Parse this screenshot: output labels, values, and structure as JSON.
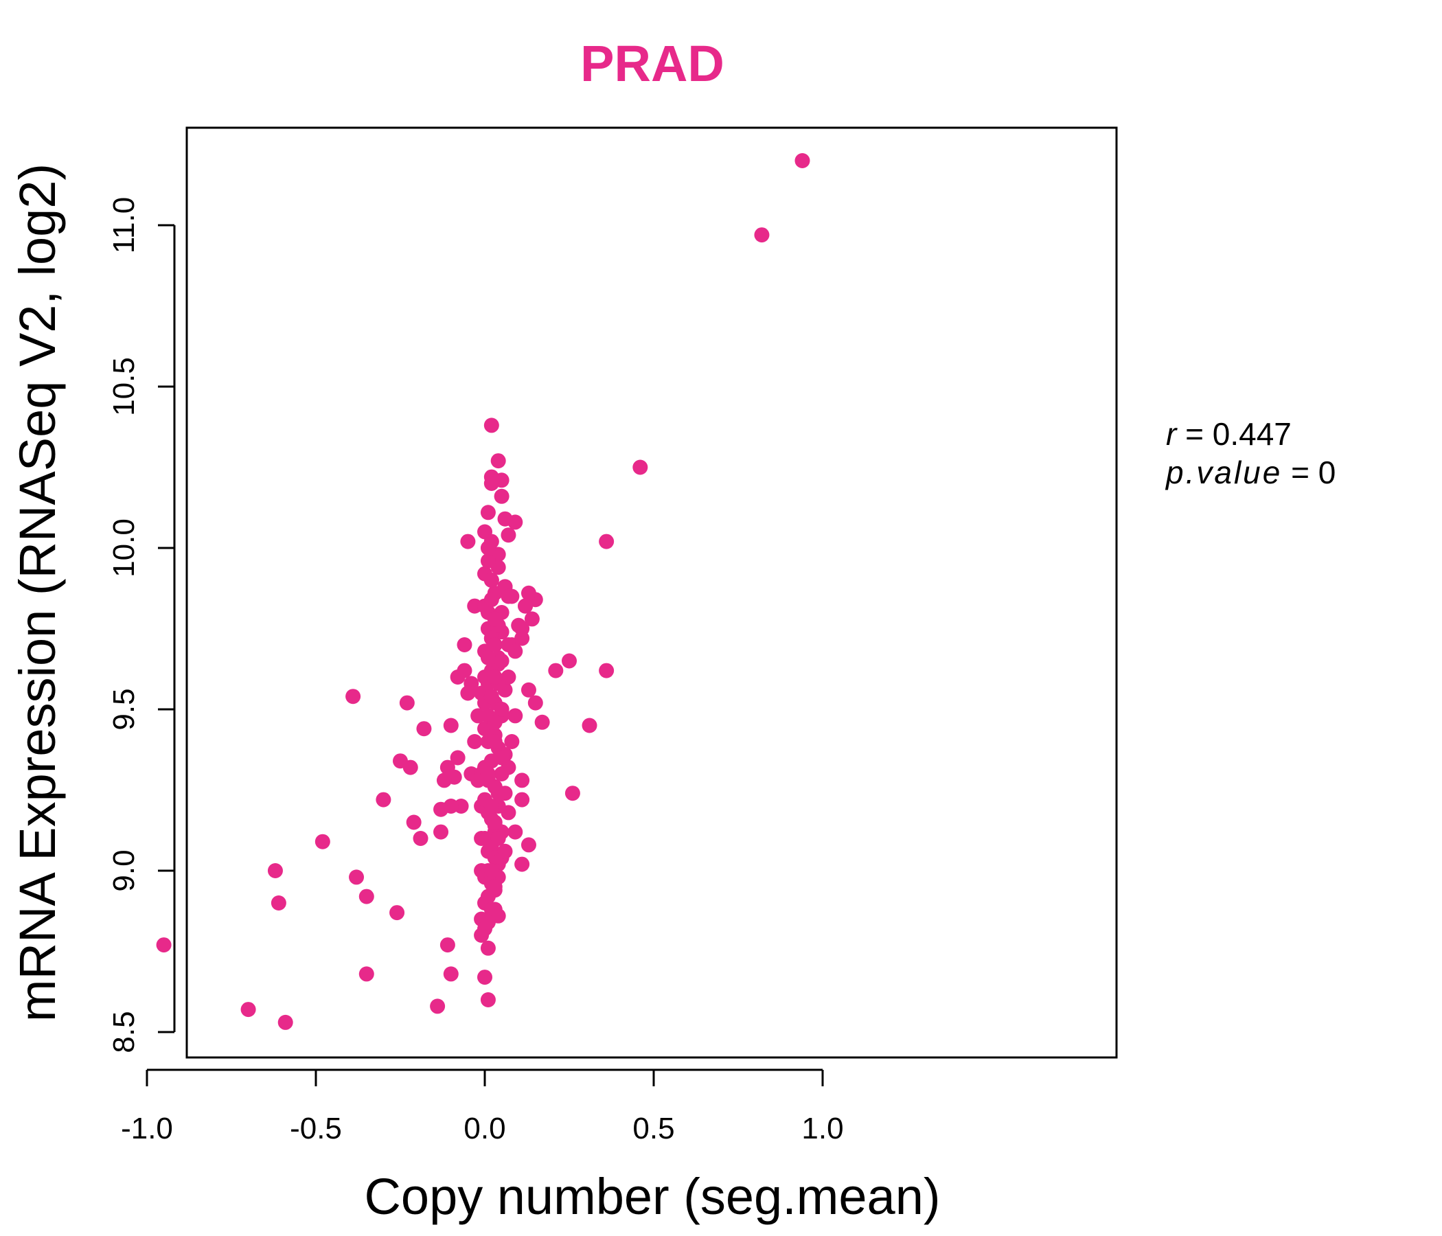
{
  "chart_data": {
    "type": "scatter",
    "title": "PRAD",
    "xlabel": "Copy number (seg.mean)",
    "ylabel": "mRNA Expression (RNASeq V2, log2)",
    "xlim": [
      -1.0,
      1.0
    ],
    "ylim": [
      8.5,
      11.2
    ],
    "xticks": [
      "-1.0",
      "-0.5",
      "0.0",
      "0.5",
      "1.0"
    ],
    "yticks": [
      "8.5",
      "9.0",
      "9.5",
      "10.0",
      "10.5",
      "11.0"
    ],
    "grid": false,
    "point_color": "#e7298a",
    "annotations": {
      "r_label": "r",
      "r_value": "0.447",
      "p_label": "p.value",
      "p_value": "0"
    },
    "series": [
      {
        "x": [
          0.94,
          0.82,
          0.46,
          0.36,
          0.36,
          0.31,
          0.26,
          0.25,
          0.21,
          0.17,
          0.15,
          0.15,
          0.14,
          0.13,
          0.13,
          0.13,
          0.12,
          0.11,
          0.11,
          0.11,
          0.11,
          0.09,
          0.09,
          0.09,
          0.08,
          0.07,
          0.07,
          0.06,
          0.05,
          0.05,
          0.04,
          0.04,
          0.04,
          0.03,
          0.03,
          0.02,
          0.02,
          0.02,
          0.01,
          0.01,
          0.01,
          0.01,
          0.0,
          0.0,
          -0.01,
          -0.01,
          -0.02,
          -0.03,
          -0.04,
          -0.04,
          -0.05,
          -0.06,
          -0.06,
          -0.07,
          -0.08,
          -0.08,
          -0.09,
          -0.1,
          -0.1,
          -0.1,
          -0.11,
          -0.11,
          -0.12,
          -0.13,
          -0.13,
          -0.14,
          -0.18,
          -0.19,
          -0.21,
          -0.22,
          -0.23,
          -0.25,
          -0.26,
          -0.3,
          -0.35,
          -0.35,
          -0.38,
          -0.39,
          -0.48,
          -0.59,
          -0.61,
          -0.62,
          -0.7,
          -0.95,
          0.02,
          0.03,
          0.04,
          0.05,
          0.06,
          0.01,
          0.02,
          0.03,
          0.04,
          0.05,
          -0.01,
          0.0,
          0.01,
          0.02,
          0.03,
          0.04,
          0.05,
          0.06,
          0.07,
          0.0,
          0.01,
          0.02,
          0.03,
          0.04,
          0.05,
          0.06,
          -0.01,
          0.0,
          0.01,
          0.02,
          0.03,
          0.04,
          0.05,
          0.06,
          0.07,
          0.08,
          -0.02,
          -0.01,
          0.0,
          0.01,
          0.02,
          0.03,
          0.04,
          0.05,
          0.06,
          0.0,
          0.01,
          0.02,
          0.03,
          0.04,
          0.05,
          -0.01,
          0.0,
          0.01,
          0.02,
          0.03,
          0.04,
          0.05,
          0.06,
          -0.01,
          0.0,
          0.01,
          0.02,
          0.03,
          0.04,
          0.0,
          0.01,
          0.02,
          0.03,
          0.04,
          0.05,
          0.0,
          0.01,
          0.02,
          0.03,
          0.04,
          0.0,
          0.01,
          0.02,
          0.03,
          0.0,
          0.01,
          0.02,
          0.01,
          0.02,
          0.0,
          0.01,
          0.03,
          0.05,
          0.07,
          0.09,
          0.11,
          0.12,
          0.1,
          0.08,
          0.06,
          -0.03,
          -0.05,
          0.07,
          0.03,
          0.02,
          0.04,
          0.01,
          0.05,
          0.02,
          0.03
        ],
        "y": [
          11.2,
          10.97,
          10.25,
          10.02,
          9.62,
          9.45,
          9.24,
          9.65,
          9.62,
          9.46,
          9.52,
          9.84,
          9.78,
          9.86,
          9.56,
          9.08,
          9.82,
          9.28,
          9.22,
          9.02,
          9.72,
          10.08,
          9.48,
          9.12,
          9.7,
          10.04,
          9.18,
          10.09,
          10.21,
          10.16,
          10.27,
          9.98,
          9.05,
          9.12,
          8.88,
          10.38,
          10.22,
          10.2,
          9.44,
          8.6,
          8.76,
          10.11,
          10.05,
          8.67,
          8.8,
          8.85,
          9.48,
          9.82,
          9.58,
          9.3,
          10.02,
          9.7,
          9.62,
          9.2,
          9.6,
          9.35,
          9.29,
          9.45,
          9.2,
          8.68,
          9.32,
          8.77,
          9.28,
          9.19,
          9.12,
          8.58,
          9.44,
          9.1,
          9.15,
          9.32,
          9.52,
          9.34,
          8.87,
          9.22,
          8.92,
          8.68,
          8.98,
          9.54,
          9.09,
          8.53,
          8.9,
          9.0,
          8.57,
          8.77,
          9.9,
          9.86,
          9.94,
          9.8,
          9.88,
          9.75,
          9.72,
          9.7,
          9.66,
          9.74,
          9.55,
          9.6,
          9.58,
          9.62,
          9.52,
          9.64,
          9.5,
          9.56,
          9.6,
          9.44,
          9.4,
          9.46,
          9.42,
          9.38,
          9.48,
          9.36,
          9.3,
          9.32,
          9.28,
          9.34,
          9.26,
          9.24,
          9.3,
          9.36,
          9.32,
          9.4,
          9.28,
          9.2,
          9.22,
          9.18,
          9.16,
          9.14,
          9.2,
          9.12,
          9.24,
          9.1,
          9.06,
          9.08,
          9.04,
          9.02,
          9.12,
          9.0,
          8.98,
          9.0,
          8.96,
          8.94,
          8.98,
          9.04,
          9.06,
          9.1,
          8.9,
          8.92,
          8.88,
          8.95,
          8.86,
          9.52,
          9.48,
          9.54,
          9.46,
          9.58,
          9.5,
          9.68,
          9.66,
          9.72,
          9.7,
          9.76,
          9.82,
          9.8,
          9.84,
          9.78,
          9.92,
          9.96,
          9.9,
          10.0,
          10.02,
          8.82,
          8.84,
          9.6,
          9.65,
          9.7,
          9.68,
          9.75,
          9.82,
          9.76,
          9.85,
          9.88,
          9.4,
          9.55,
          9.85,
          9.4,
          9.2,
          9.1,
          9.3,
          9.35,
          9.0,
          9.15
        ]
      }
    ]
  }
}
